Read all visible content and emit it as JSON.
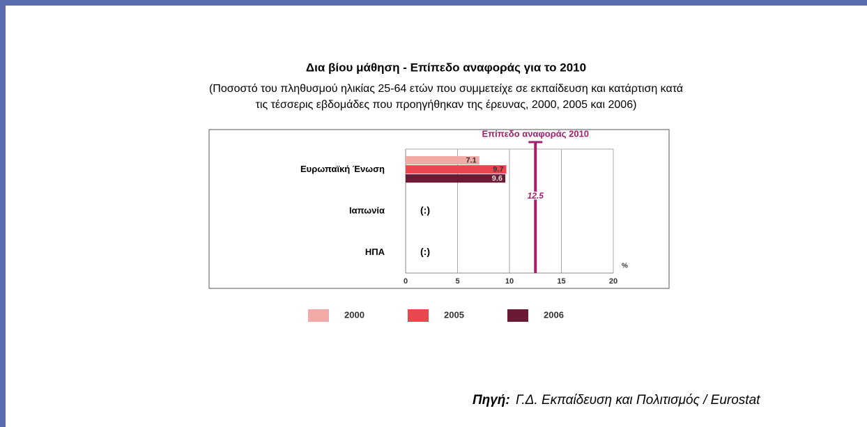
{
  "chart_data": {
    "type": "bar",
    "orientation": "horizontal",
    "title": "Δια βίου μάθηση - Επίπεδο αναφοράς για το 2010",
    "subtitle": [
      "(Ποσοστό του πληθυσμού ηλικίας 25-64 ετών που συμμετείχε σε εκπαίδευση και κατάρτιση κατά",
      "τις τέσσερις εβδομάδες που προηγήθηκαν της έρευνας, 2000, 2005 και 2006)"
    ],
    "categories": [
      "Ευρωπαϊκή Ένωση",
      "Ιαπωνία",
      "ΗΠΑ"
    ],
    "category_notes": [
      null,
      "(:)",
      "(:)"
    ],
    "series": [
      {
        "name": "2000",
        "color": "#f2aaa6",
        "values": [
          7.1,
          null,
          null
        ]
      },
      {
        "name": "2005",
        "color": "#e8474f",
        "values": [
          9.7,
          null,
          null
        ]
      },
      {
        "name": "2006",
        "color": "#6b1a35",
        "values": [
          9.6,
          null,
          null
        ]
      }
    ],
    "xlim": [
      0,
      20
    ],
    "xticks": [
      0,
      5,
      10,
      15,
      20
    ],
    "value_axis_label": "%",
    "grid": true,
    "legend": "bottom",
    "reference_line": {
      "label": "Επίπεδο αναφοράς 2010",
      "value": 12.5,
      "color": "#a0226e"
    },
    "source_label": "Πηγή:",
    "source": "Γ.Δ. Εκπαίδευση και Πολιτισμός / Eurostat"
  }
}
